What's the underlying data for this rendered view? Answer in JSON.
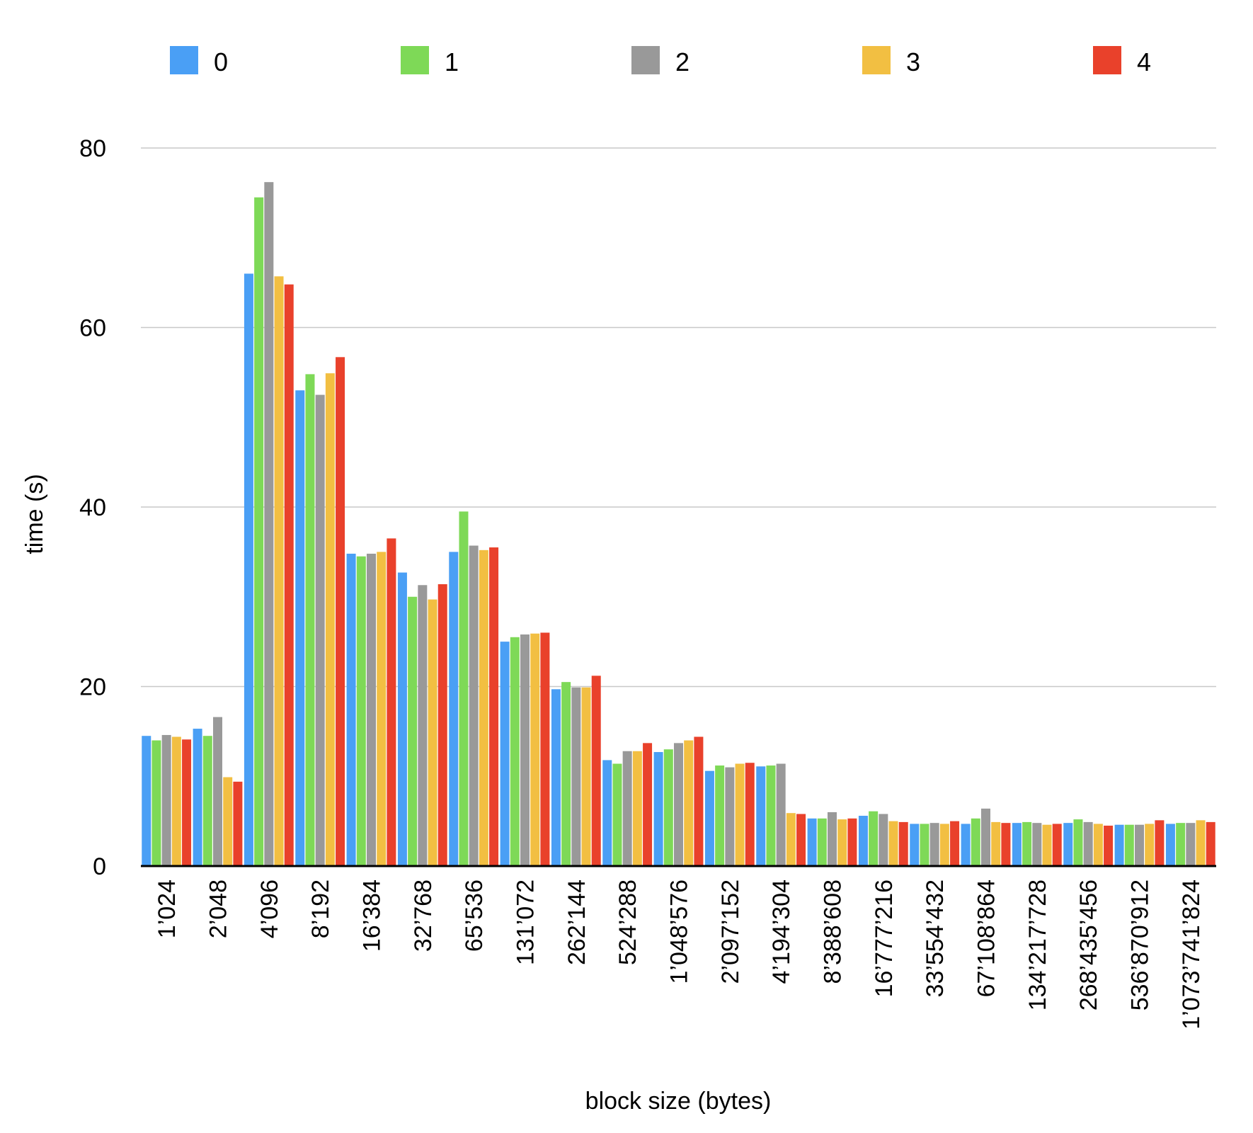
{
  "chart_data": {
    "type": "bar",
    "title": "",
    "xlabel": "block size (bytes)",
    "ylabel": "time (s)",
    "ylim": [
      0,
      80
    ],
    "yticks": [
      "0",
      "20",
      "40",
      "60",
      "80"
    ],
    "grid": true,
    "legend_position": "top",
    "categories": [
      "1’024",
      "2’048",
      "4’096",
      "8’192",
      "16’384",
      "32’768",
      "65’536",
      "131’072",
      "262’144",
      "524’288",
      "1’048’576",
      "2’097’152",
      "4’194’304",
      "8’388’608",
      "16’777’216",
      "33’554’432",
      "67’108’864",
      "134’217’728",
      "268’435’456",
      "536’870’912",
      "1’073’741’824"
    ],
    "series": [
      {
        "name": "0",
        "color": "#4a9ff5",
        "values": [
          14.5,
          15.3,
          66.0,
          53.0,
          34.8,
          32.7,
          35.0,
          25.0,
          19.7,
          11.8,
          12.7,
          10.6,
          11.1,
          5.3,
          5.6,
          4.7,
          4.7,
          4.8,
          4.8,
          4.6,
          4.7
        ]
      },
      {
        "name": "1",
        "color": "#7ed957",
        "values": [
          14.0,
          14.5,
          74.5,
          54.8,
          34.5,
          30.0,
          39.5,
          25.5,
          20.5,
          11.4,
          13.0,
          11.2,
          11.2,
          5.3,
          6.1,
          4.7,
          5.3,
          4.9,
          5.2,
          4.6,
          4.8
        ]
      },
      {
        "name": "2",
        "color": "#999999",
        "values": [
          14.6,
          16.6,
          76.2,
          52.5,
          34.8,
          31.3,
          35.7,
          25.8,
          19.9,
          12.8,
          13.7,
          11.0,
          11.4,
          6.0,
          5.8,
          4.8,
          6.4,
          4.8,
          4.9,
          4.6,
          4.8
        ]
      },
      {
        "name": "3",
        "color": "#f2bf42",
        "values": [
          14.4,
          9.9,
          65.7,
          54.9,
          35.0,
          29.7,
          35.2,
          25.9,
          19.9,
          12.8,
          14.0,
          11.4,
          5.9,
          5.2,
          5.0,
          4.7,
          4.9,
          4.6,
          4.7,
          4.7,
          5.1
        ]
      },
      {
        "name": "4",
        "color": "#e9412b",
        "values": [
          14.1,
          9.4,
          64.8,
          56.7,
          36.5,
          31.4,
          35.5,
          26.0,
          21.2,
          13.7,
          14.4,
          11.5,
          5.8,
          5.3,
          4.9,
          5.0,
          4.8,
          4.7,
          4.5,
          5.1,
          4.9
        ]
      }
    ]
  }
}
